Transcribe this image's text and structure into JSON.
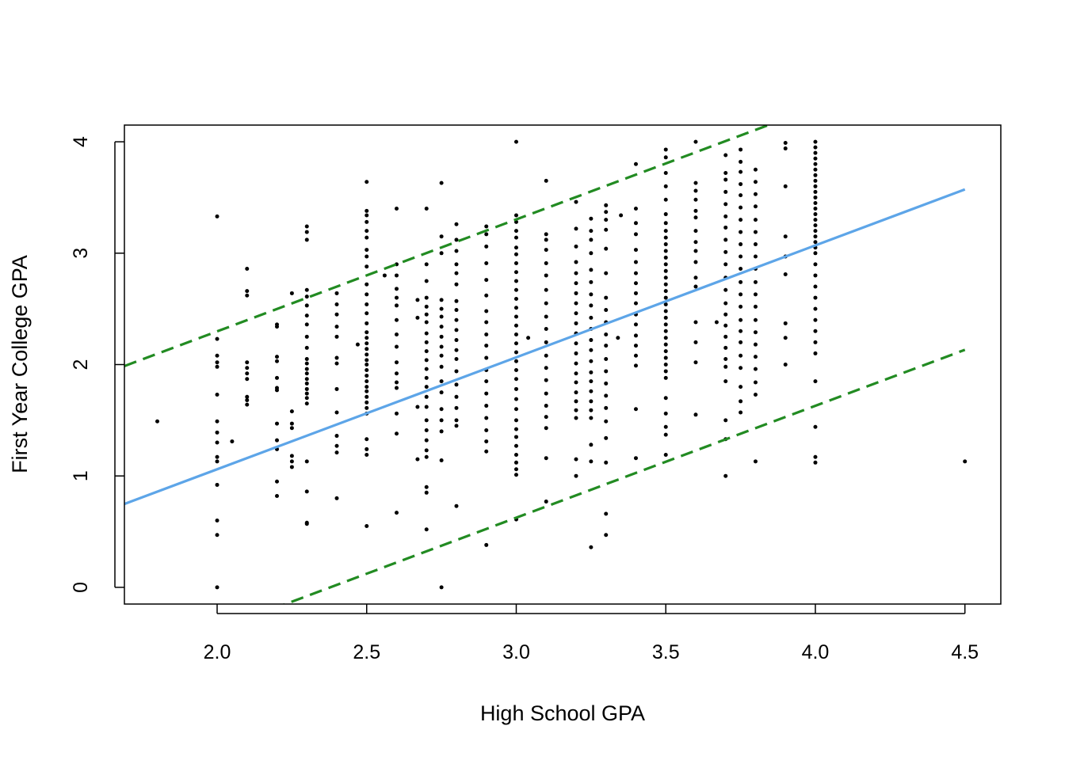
{
  "chart_data": {
    "type": "scatter",
    "title": "",
    "xlabel": "High School GPA",
    "ylabel": "First Year College GPA",
    "xlim": [
      1.69,
      4.62
    ],
    "ylim": [
      -0.15,
      4.15
    ],
    "xticks": [
      2.0,
      2.5,
      3.0,
      3.5,
      4.0,
      4.5
    ],
    "xtick_labels": [
      "2.0",
      "2.5",
      "3.0",
      "3.5",
      "4.0",
      "4.5"
    ],
    "yticks": [
      0,
      1,
      2,
      3,
      4
    ],
    "ytick_labels": [
      "0",
      "1",
      "2",
      "3",
      "4"
    ],
    "grid": false,
    "lines": [
      {
        "kind": "fit",
        "style": "solid",
        "color": "#5DA5E8",
        "intercept": -0.95,
        "slope": 1.005
      },
      {
        "kind": "upper-interval",
        "style": "dashed",
        "color": "#228B22",
        "intercept": 0.288,
        "slope": 1.005
      },
      {
        "kind": "lower-interval",
        "style": "dashed",
        "color": "#228B22",
        "intercept": -2.39,
        "slope": 1.005
      }
    ],
    "scatter_columns": [
      {
        "x": 1.8,
        "y": [
          1.49
        ]
      },
      {
        "x": 2.0,
        "y": [
          0.0,
          0.47,
          0.6,
          0.92,
          1.13,
          1.17,
          1.3,
          1.39,
          1.49,
          1.73,
          1.98,
          2.02,
          2.08,
          2.23,
          3.33
        ]
      },
      {
        "x": 2.05,
        "y": [
          1.31
        ]
      },
      {
        "x": 2.1,
        "y": [
          1.64,
          1.68,
          1.71,
          1.87,
          1.92,
          1.97,
          2.02,
          2.62,
          2.66,
          2.86
        ]
      },
      {
        "x": 2.2,
        "y": [
          0.82,
          0.95,
          1.24,
          1.32,
          1.47,
          1.77,
          1.79,
          1.88,
          2.03,
          2.07,
          2.34,
          2.36
        ]
      },
      {
        "x": 2.25,
        "y": [
          1.08,
          1.13,
          1.18,
          1.43,
          1.47,
          1.58,
          2.64
        ]
      },
      {
        "x": 2.3,
        "y": [
          0.57,
          0.58,
          0.86,
          1.13,
          1.65,
          1.7,
          1.74,
          1.78,
          1.83,
          1.87,
          1.92,
          1.96,
          2.01,
          2.05,
          2.15,
          2.25,
          2.36,
          2.44,
          2.53,
          2.61,
          2.67,
          3.12,
          3.19,
          3.24
        ]
      },
      {
        "x": 2.4,
        "y": [
          0.8,
          1.21,
          1.27,
          1.36,
          1.57,
          1.78,
          2.01,
          2.06,
          2.25,
          2.34,
          2.45,
          2.54,
          2.64
        ]
      },
      {
        "x": 2.47,
        "y": [
          2.18
        ]
      },
      {
        "x": 2.5,
        "y": [
          0.55,
          1.19,
          1.24,
          1.33,
          1.56,
          1.61,
          1.66,
          1.71,
          1.76,
          1.8,
          1.85,
          1.9,
          1.95,
          2.0,
          2.04,
          2.09,
          2.14,
          2.19,
          2.24,
          2.29,
          2.37,
          2.46,
          2.54,
          2.63,
          2.72,
          2.88,
          2.97,
          3.03,
          3.14,
          3.2,
          3.28,
          3.34,
          3.38,
          3.64
        ]
      },
      {
        "x": 2.56,
        "y": [
          2.8
        ]
      },
      {
        "x": 2.6,
        "y": [
          0.67,
          1.38,
          1.56,
          1.79,
          1.84,
          1.92,
          2.02,
          2.16,
          2.27,
          2.4,
          2.53,
          2.6,
          2.68,
          2.8,
          2.9,
          3.4
        ]
      },
      {
        "x": 2.67,
        "y": [
          1.15,
          1.62,
          2.42,
          2.58
        ]
      },
      {
        "x": 2.7,
        "y": [
          0.52,
          0.85,
          0.9,
          1.17,
          1.23,
          1.32,
          1.41,
          1.5,
          1.62,
          1.71,
          1.8,
          1.88,
          1.96,
          2.04,
          2.12,
          2.2,
          2.28,
          2.38,
          2.45,
          2.52,
          2.6,
          2.75,
          2.9,
          3.4
        ]
      },
      {
        "x": 2.75,
        "y": [
          0.0,
          1.14,
          1.4,
          1.5,
          1.6,
          1.75,
          1.85,
          1.98,
          2.08,
          2.16,
          2.25,
          2.34,
          2.43,
          2.5,
          2.58,
          3.0,
          3.15,
          3.63
        ]
      },
      {
        "x": 2.8,
        "y": [
          0.73,
          1.45,
          1.5,
          1.61,
          1.71,
          1.82,
          1.94,
          2.05,
          2.13,
          2.22,
          2.31,
          2.4,
          2.49,
          2.57,
          2.72,
          2.82,
          2.9,
          3.02,
          3.12,
          3.26
        ]
      },
      {
        "x": 2.9,
        "y": [
          0.38,
          1.22,
          1.31,
          1.41,
          1.52,
          1.63,
          1.74,
          1.85,
          1.95,
          2.06,
          2.17,
          2.27,
          2.38,
          2.48,
          2.62,
          2.76,
          2.91,
          3.06,
          3.17,
          3.24
        ]
      },
      {
        "x": 3.0,
        "y": [
          0.61,
          1.01,
          1.06,
          1.12,
          1.19,
          1.27,
          1.35,
          1.42,
          1.5,
          1.6,
          1.69,
          1.78,
          1.87,
          1.95,
          2.03,
          2.11,
          2.19,
          2.27,
          2.35,
          2.43,
          2.51,
          2.59,
          2.67,
          2.75,
          2.83,
          2.91,
          2.99,
          3.05,
          3.14,
          3.2,
          3.28,
          3.34,
          4.0
        ]
      },
      {
        "x": 3.04,
        "y": [
          2.24
        ]
      },
      {
        "x": 3.1,
        "y": [
          0.77,
          1.16,
          1.43,
          1.53,
          1.63,
          1.74,
          1.86,
          1.97,
          2.08,
          2.2,
          2.32,
          2.43,
          2.55,
          2.67,
          2.8,
          2.91,
          3.03,
          3.12,
          3.17,
          3.65
        ]
      },
      {
        "x": 3.2,
        "y": [
          1.0,
          1.15,
          1.52,
          1.59,
          1.67,
          1.75,
          1.84,
          1.92,
          2.01,
          2.1,
          2.19,
          2.28,
          2.37,
          2.46,
          2.55,
          2.64,
          2.73,
          2.82,
          2.92,
          3.06,
          3.22,
          3.46
        ]
      },
      {
        "x": 3.25,
        "y": [
          0.36,
          1.13,
          1.28,
          1.52,
          1.59,
          1.67,
          1.76,
          1.85,
          1.93,
          2.03,
          2.13,
          2.22,
          2.32,
          2.42,
          2.53,
          2.63,
          2.74,
          2.85,
          3.0,
          3.12,
          3.2,
          3.31
        ]
      },
      {
        "x": 3.3,
        "y": [
          0.47,
          0.66,
          1.12,
          1.34,
          1.49,
          1.61,
          1.72,
          1.83,
          1.94,
          2.05,
          2.17,
          2.27,
          2.38,
          2.49,
          2.6,
          2.82,
          3.04,
          3.21,
          3.3,
          3.37,
          3.43
        ]
      },
      {
        "x": 3.34,
        "y": [
          2.24
        ]
      },
      {
        "x": 3.35,
        "y": [
          3.34
        ]
      },
      {
        "x": 3.4,
        "y": [
          1.16,
          1.6,
          1.99,
          2.08,
          2.17,
          2.26,
          2.36,
          2.45,
          2.55,
          2.64,
          2.73,
          2.82,
          2.92,
          3.03,
          3.17,
          3.27,
          3.4,
          3.8
        ]
      },
      {
        "x": 3.5,
        "y": [
          1.19,
          1.37,
          1.44,
          1.56,
          1.7,
          1.88,
          1.94,
          2.0,
          2.06,
          2.12,
          2.18,
          2.24,
          2.3,
          2.36,
          2.42,
          2.48,
          2.54,
          2.6,
          2.66,
          2.72,
          2.78,
          2.84,
          2.9,
          2.96,
          3.02,
          3.08,
          3.14,
          3.2,
          3.27,
          3.35,
          3.48,
          3.6,
          3.72,
          3.86,
          3.93
        ]
      },
      {
        "x": 3.6,
        "y": [
          1.55,
          2.02,
          2.2,
          2.38,
          2.7,
          2.78,
          2.92,
          3.02,
          3.1,
          3.2,
          3.32,
          3.38,
          3.48,
          3.56,
          3.63,
          4.0
        ]
      },
      {
        "x": 3.67,
        "y": [
          2.38
        ]
      },
      {
        "x": 3.7,
        "y": [
          1.0,
          1.33,
          1.5,
          1.85,
          1.98,
          2.05,
          2.15,
          2.25,
          2.35,
          2.45,
          2.55,
          2.67,
          2.78,
          2.9,
          3.01,
          3.12,
          3.23,
          3.33,
          3.44,
          3.55,
          3.66,
          3.72,
          3.88
        ]
      },
      {
        "x": 3.75,
        "y": [
          1.57,
          1.67,
          1.8,
          1.97,
          2.08,
          2.2,
          2.3,
          2.4,
          2.52,
          2.63,
          2.74,
          2.86,
          2.97,
          3.08,
          3.19,
          3.3,
          3.41,
          3.52,
          3.62,
          3.73,
          3.82,
          3.93
        ]
      },
      {
        "x": 3.8,
        "y": [
          1.13,
          1.73,
          1.84,
          1.96,
          2.07,
          2.18,
          2.29,
          2.4,
          2.52,
          2.63,
          2.74,
          2.86,
          2.97,
          3.08,
          3.19,
          3.3,
          3.42,
          3.53,
          3.64,
          3.75
        ]
      },
      {
        "x": 3.9,
        "y": [
          2.0,
          2.24,
          2.37,
          2.81,
          2.97,
          3.15,
          3.6,
          3.94,
          3.99
        ]
      },
      {
        "x": 4.0,
        "y": [
          1.12,
          1.17,
          1.44,
          1.85,
          2.1,
          2.2,
          2.3,
          2.4,
          2.5,
          2.6,
          2.7,
          2.8,
          2.9,
          3.0,
          3.05,
          3.1,
          3.15,
          3.2,
          3.25,
          3.3,
          3.35,
          3.4,
          3.45,
          3.5,
          3.55,
          3.6,
          3.65,
          3.7,
          3.75,
          3.8,
          3.85,
          3.9,
          3.95,
          4.0
        ]
      },
      {
        "x": 4.5,
        "y": [
          1.13
        ]
      }
    ]
  }
}
